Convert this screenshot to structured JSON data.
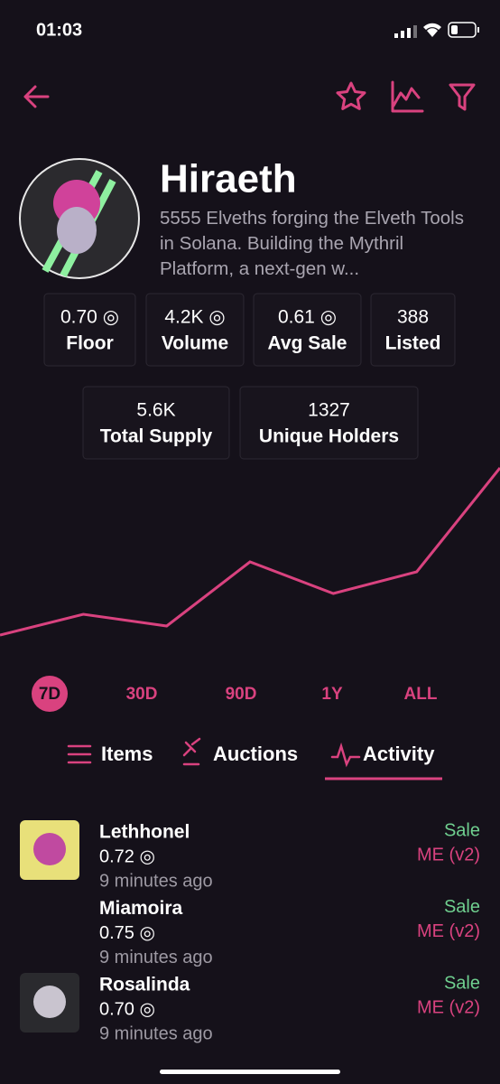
{
  "status_bar": {
    "time": "01:03"
  },
  "collection": {
    "name": "Hiraeth",
    "description": "5555 Elveths forging the Elveth Tools in Solana. Building the Mythril Platform, a next-gen w..."
  },
  "stats": [
    {
      "value": "0.70 ◎",
      "label": "Floor"
    },
    {
      "value": "4.2K ◎",
      "label": "Volume"
    },
    {
      "value": "0.61 ◎",
      "label": "Avg Sale"
    },
    {
      "value": "388",
      "label": "Listed"
    },
    {
      "value": "5.6K",
      "label": "Total Supply"
    },
    {
      "value": "1327",
      "label": "Unique Holders"
    }
  ],
  "price_chart": {
    "type": "line",
    "color": "#d9427f",
    "values": [
      17,
      40,
      27,
      98,
      63,
      87,
      202
    ]
  },
  "timeframes": [
    "7D",
    "30D",
    "90D",
    "1Y",
    "ALL"
  ],
  "tabs": [
    "Items",
    "Auctions",
    "Activity"
  ],
  "activity": [
    {
      "name": "Lethhonel",
      "price": "0.72 ◎",
      "time": "9 minutes ago",
      "type": "Sale",
      "market": "ME (v2)"
    },
    {
      "name": "Miamoira",
      "price": "0.75 ◎",
      "time": "9 minutes ago",
      "type": "Sale",
      "market": "ME (v2)"
    },
    {
      "name": "Rosalinda",
      "price": "0.70 ◎",
      "time": "9 minutes ago",
      "type": "Sale",
      "market": "ME (v2)"
    }
  ]
}
